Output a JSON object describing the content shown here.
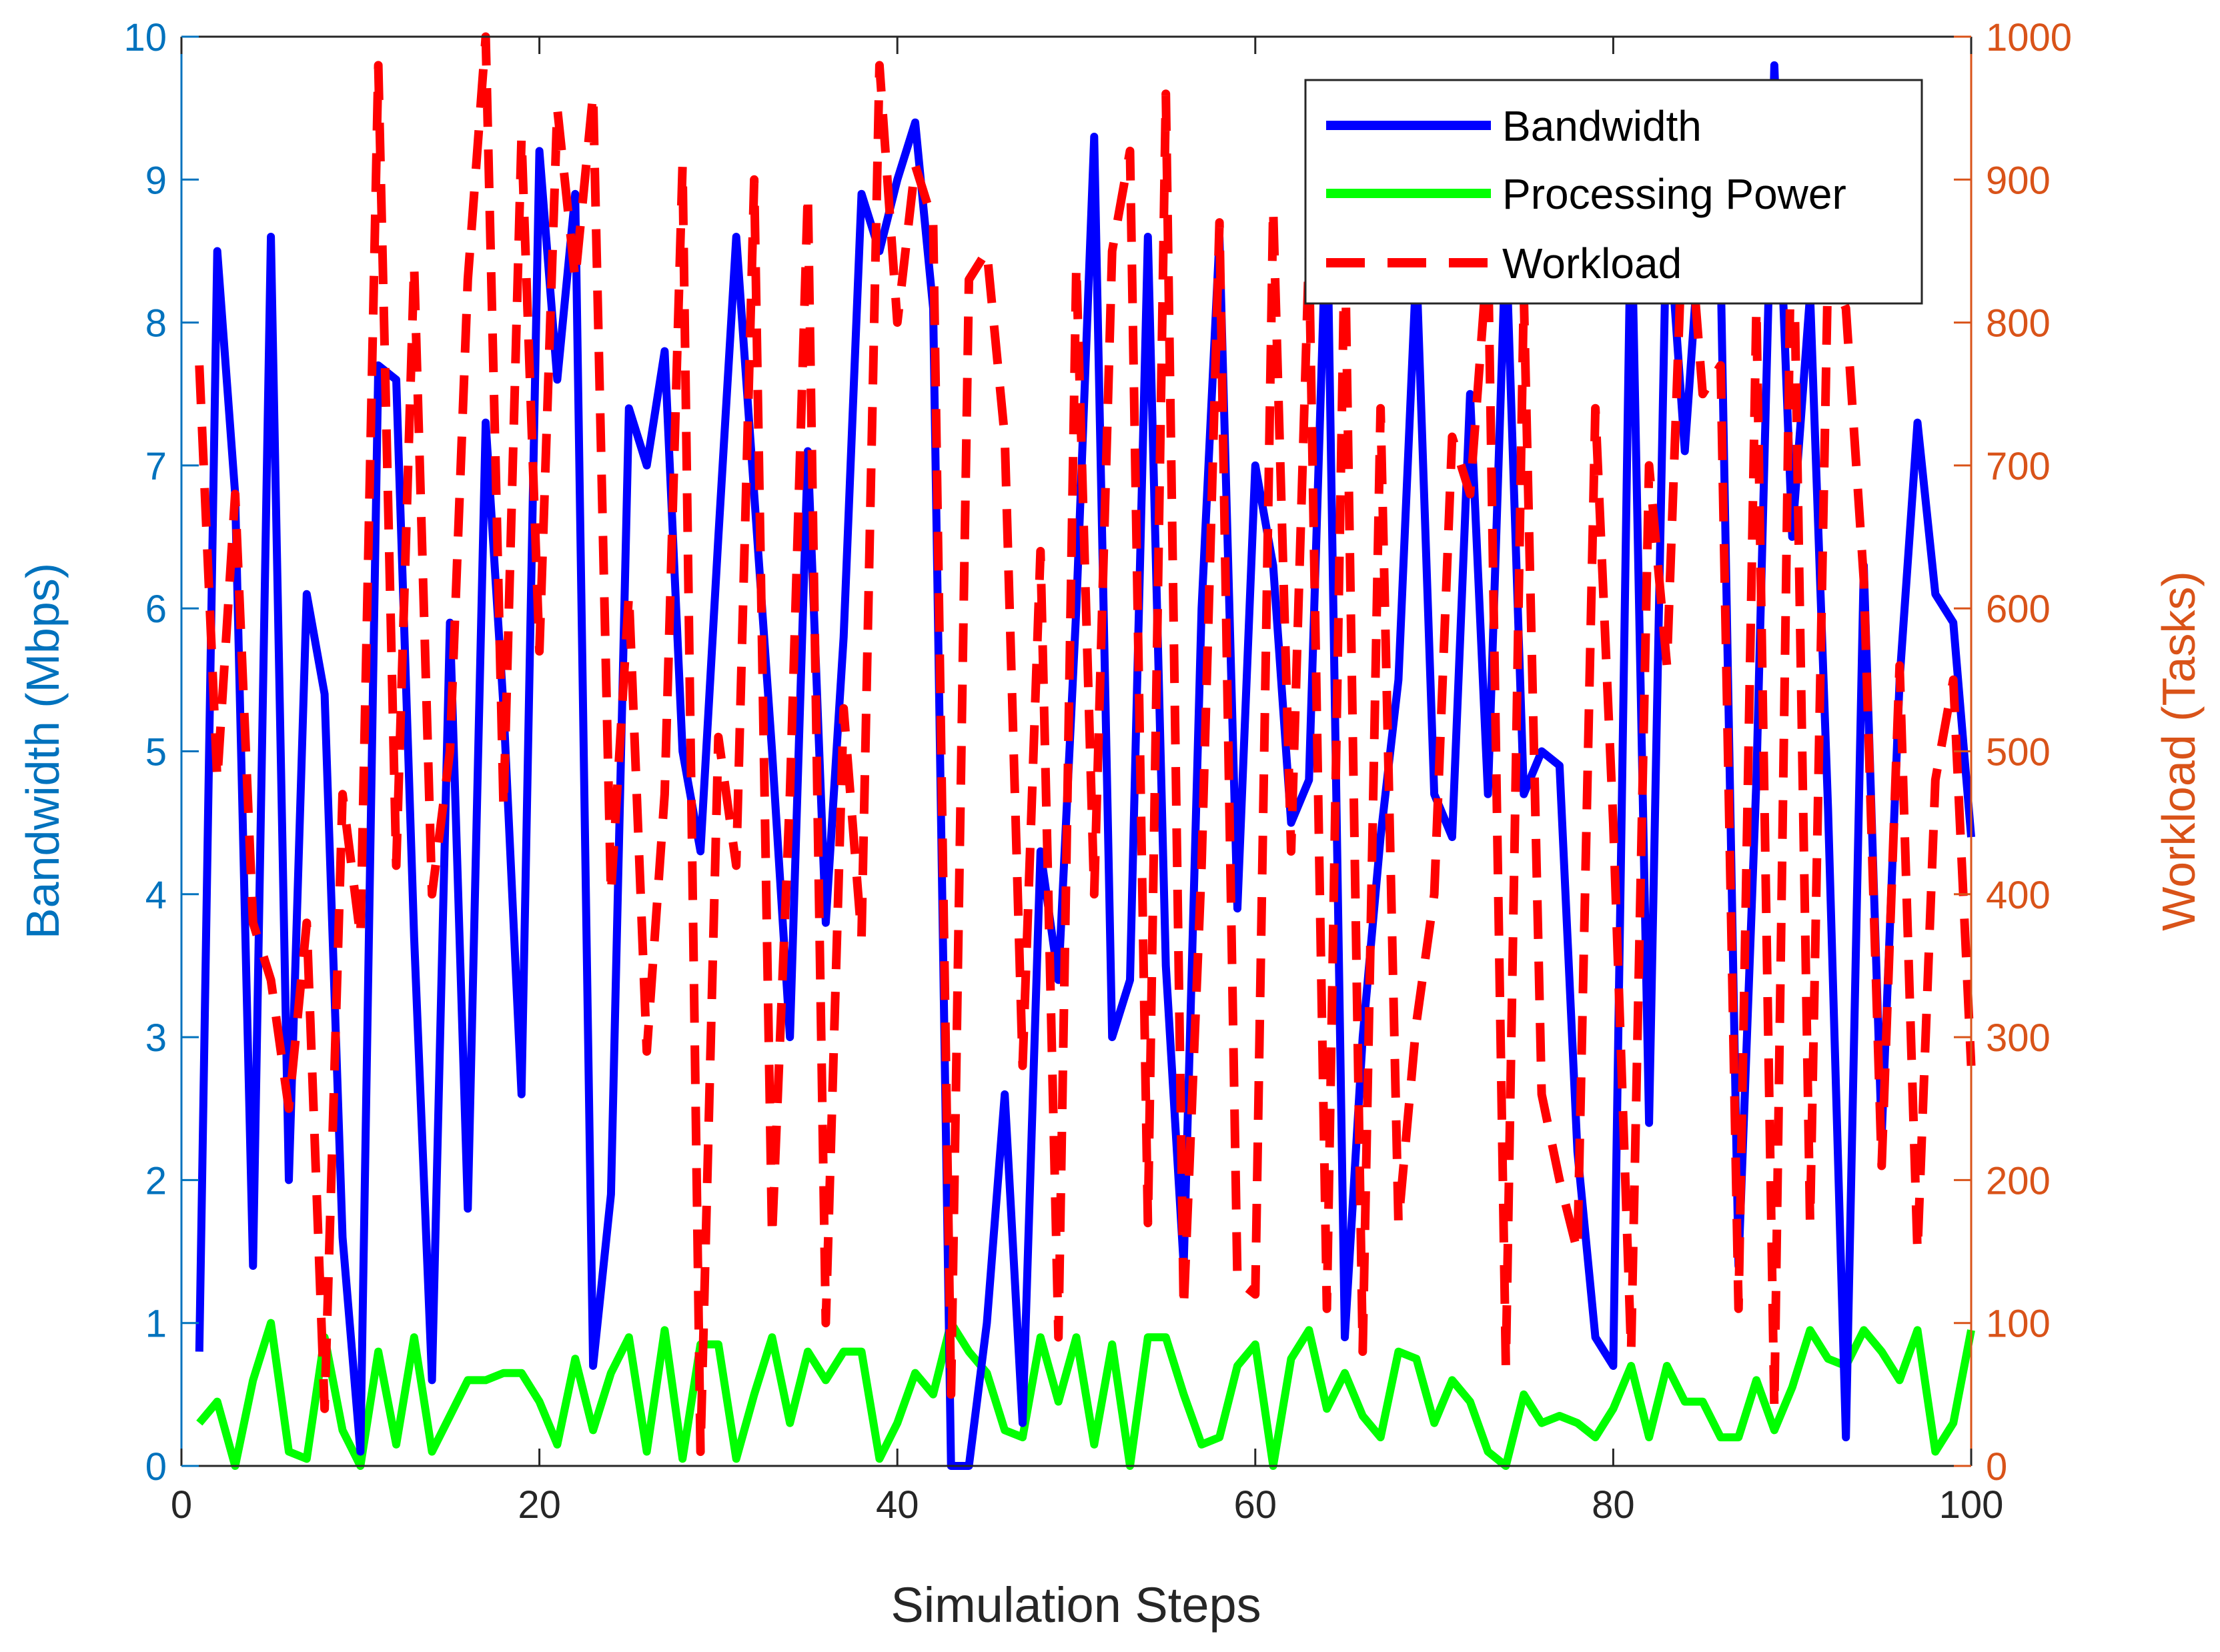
{
  "chart_data": {
    "type": "line",
    "title": "",
    "xlabel": "Simulation Steps",
    "ylabel_left": "Bandwidth (Mbps)",
    "ylabel_right": "Workload (Tasks)",
    "xlim": [
      0,
      100
    ],
    "ylim_left": [
      0,
      10
    ],
    "ylim_right": [
      0,
      1000
    ],
    "x_ticks": [
      "0",
      "20",
      "40",
      "60",
      "80",
      "100"
    ],
    "y_left_ticks": [
      "0",
      "1",
      "2",
      "3",
      "4",
      "5",
      "6",
      "7",
      "8",
      "9",
      "10"
    ],
    "y_right_ticks": [
      "0",
      "100",
      "200",
      "300",
      "400",
      "500",
      "600",
      "700",
      "800",
      "900",
      "1000"
    ],
    "grid": false,
    "legend_position": "top-right",
    "x": [
      1,
      2,
      3,
      4,
      5,
      6,
      7,
      8,
      9,
      10,
      11,
      12,
      13,
      14,
      15,
      16,
      17,
      18,
      19,
      20,
      21,
      22,
      23,
      24,
      25,
      26,
      27,
      28,
      29,
      30,
      31,
      32,
      33,
      34,
      35,
      36,
      37,
      38,
      39,
      40,
      41,
      42,
      43,
      44,
      45,
      46,
      47,
      48,
      49,
      50,
      51,
      52,
      53,
      54,
      55,
      56,
      57,
      58,
      59,
      60,
      61,
      62,
      63,
      64,
      65,
      66,
      67,
      68,
      69,
      70,
      71,
      72,
      73,
      74,
      75,
      76,
      77,
      78,
      79,
      80,
      81,
      82,
      83,
      84,
      85,
      86,
      87,
      88,
      89,
      90,
      91,
      92,
      93,
      94,
      95,
      96,
      97,
      98,
      99,
      100
    ],
    "series": [
      {
        "name": "Bandwidth",
        "axis": "left",
        "color": "#0000FF",
        "style": "solid",
        "values": [
          0.8,
          8.5,
          6.8,
          1.4,
          8.6,
          2.0,
          6.1,
          5.4,
          1.6,
          0.1,
          7.7,
          7.6,
          3.7,
          0.6,
          5.9,
          1.8,
          7.3,
          5.3,
          2.6,
          9.2,
          7.6,
          8.9,
          0.7,
          1.9,
          7.4,
          7.0,
          7.8,
          5.0,
          4.3,
          6.5,
          8.6,
          6.8,
          5.0,
          3.0,
          7.1,
          3.8,
          5.8,
          8.9,
          8.5,
          9.0,
          9.4,
          8.1,
          0.0,
          0.0,
          1.0,
          2.6,
          0.3,
          4.3,
          3.4,
          6.0,
          9.3,
          3.0,
          3.4,
          8.6,
          3.5,
          1.4,
          6.0,
          8.6,
          3.9,
          7.0,
          6.3,
          4.5,
          4.8,
          8.9,
          0.9,
          3.0,
          4.4,
          5.5,
          8.4,
          4.7,
          4.4,
          7.5,
          4.7,
          8.6,
          4.7,
          5.0,
          4.9,
          2.2,
          0.9,
          0.7,
          8.9,
          2.4,
          8.9,
          7.1,
          8.9,
          8.4,
          1.4,
          4.8,
          9.8,
          6.5,
          8.2,
          4.6,
          0.2,
          6.3,
          2.3,
          5.5,
          7.3,
          6.1,
          5.9,
          4.4
        ]
      },
      {
        "name": "Processing Power",
        "axis": "left",
        "color": "#00FF00",
        "style": "solid",
        "values": [
          0.3,
          0.45,
          0.0,
          0.6,
          1.0,
          0.1,
          0.05,
          0.9,
          0.25,
          0.0,
          0.8,
          0.15,
          0.9,
          0.1,
          0.35,
          0.6,
          0.6,
          0.65,
          0.65,
          0.45,
          0.15,
          0.75,
          0.25,
          0.65,
          0.9,
          0.1,
          0.95,
          0.05,
          0.85,
          0.85,
          0.05,
          0.5,
          0.9,
          0.3,
          0.8,
          0.6,
          0.8,
          0.8,
          0.05,
          0.3,
          0.65,
          0.5,
          1.0,
          0.8,
          0.65,
          0.25,
          0.2,
          0.9,
          0.45,
          0.9,
          0.15,
          0.85,
          0.0,
          0.9,
          0.9,
          0.5,
          0.15,
          0.2,
          0.7,
          0.85,
          0.0,
          0.75,
          0.95,
          0.4,
          0.65,
          0.35,
          0.2,
          0.8,
          0.75,
          0.3,
          0.6,
          0.45,
          0.1,
          0.0,
          0.5,
          0.3,
          0.35,
          0.3,
          0.2,
          0.4,
          0.7,
          0.2,
          0.7,
          0.45,
          0.45,
          0.2,
          0.2,
          0.6,
          0.25,
          0.55,
          0.95,
          0.75,
          0.7,
          0.95,
          0.8,
          0.6,
          0.95,
          0.1,
          0.3,
          0.95
        ]
      },
      {
        "name": "Workload",
        "axis": "right",
        "color": "#FF0000",
        "style": "dashed",
        "values": [
          770,
          480,
          680,
          380,
          340,
          250,
          380,
          40,
          470,
          370,
          980,
          420,
          840,
          400,
          500,
          830,
          1000,
          460,
          930,
          570,
          950,
          830,
          960,
          400,
          610,
          290,
          470,
          910,
          10,
          510,
          420,
          900,
          160,
          470,
          890,
          100,
          530,
          370,
          980,
          800,
          910,
          870,
          50,
          830,
          850,
          720,
          280,
          640,
          90,
          840,
          400,
          850,
          920,
          170,
          960,
          110,
          420,
          870,
          130,
          120,
          880,
          430,
          850,
          110,
          860,
          80,
          740,
          170,
          310,
          400,
          720,
          680,
          850,
          70,
          820,
          260,
          200,
          150,
          740,
          450,
          80,
          700,
          560,
          910,
          750,
          770,
          110,
          810,
          40,
          920,
          170,
          840,
          810,
          620,
          210,
          560,
          150,
          480,
          550,
          280
        ]
      }
    ]
  }
}
